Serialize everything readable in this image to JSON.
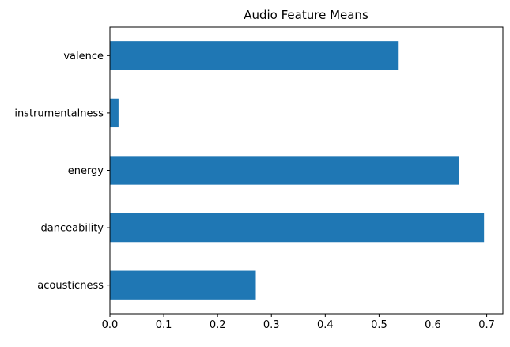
{
  "chart_data": {
    "type": "bar",
    "orientation": "horizontal",
    "title": "Audio Feature Means",
    "xlabel": "",
    "ylabel": "",
    "categories": [
      "acousticness",
      "danceability",
      "energy",
      "instrumentalness",
      "valence"
    ],
    "values": [
      0.271,
      0.695,
      0.649,
      0.016,
      0.535
    ],
    "xlim": [
      0,
      0.73
    ],
    "xticks": [
      0.0,
      0.1,
      0.2,
      0.3,
      0.4,
      0.5,
      0.6,
      0.7
    ],
    "xtick_labels": [
      "0.0",
      "0.1",
      "0.2",
      "0.3",
      "0.4",
      "0.5",
      "0.6",
      "0.7"
    ],
    "grid": false,
    "legend": "none",
    "bar_color": "#1f77b4"
  }
}
